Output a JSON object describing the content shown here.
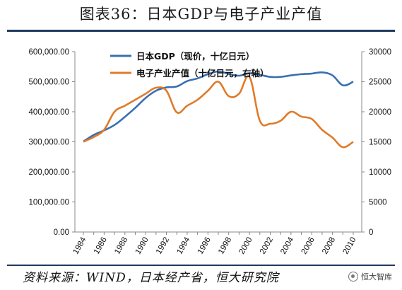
{
  "title": "图表36：日本GDP与电子产业产值",
  "source": "资料来源：WIND，日本经产省，恒大研究院",
  "watermark": "恒大智库",
  "chart_data": {
    "type": "line",
    "x": [
      1984,
      1985,
      1986,
      1987,
      1988,
      1989,
      1990,
      1991,
      1992,
      1993,
      1994,
      1995,
      1996,
      1997,
      1998,
      1999,
      2000,
      2001,
      2002,
      2003,
      2004,
      2005,
      2006,
      2007,
      2008,
      2009,
      2010
    ],
    "x_tick_labels": [
      "1984",
      "1986",
      "1988",
      "1990",
      "1992",
      "1994",
      "1996",
      "1998",
      "2000",
      "2002",
      "2004",
      "2006",
      "2008",
      "2010"
    ],
    "y_left": {
      "ylim": [
        0,
        600000
      ],
      "ticks": [
        "0.00",
        "100,000.00",
        "200,000.00",
        "300,000.00",
        "400,000.00",
        "500,000.00",
        "600,000.00"
      ]
    },
    "y_right": {
      "ylim": [
        0,
        30000
      ],
      "ticks": [
        "0",
        "5000",
        "10000",
        "15000",
        "20000",
        "25000",
        "30000"
      ]
    },
    "grid": false,
    "legend_position": "top-left",
    "series": [
      {
        "name": "日本GDP（现价，十亿日元）",
        "axis": "left",
        "color": "#3a6fb0",
        "values": [
          301000,
          323000,
          338000,
          356000,
          383000,
          413000,
          446000,
          470000,
          481000,
          484000,
          502000,
          511000,
          525000,
          534000,
          526000,
          520000,
          528000,
          523000,
          516000,
          516000,
          521000,
          525000,
          527000,
          531000,
          521000,
          488000,
          500000
        ]
      },
      {
        "name": "电子产业产值（十亿日元，右轴）",
        "axis": "right",
        "color": "#e07b2a",
        "values": [
          15000,
          15800,
          17000,
          20000,
          21000,
          22000,
          23000,
          24000,
          23500,
          19900,
          21000,
          22000,
          23500,
          25000,
          22600,
          23000,
          25800,
          18500,
          18000,
          18500,
          20000,
          19200,
          18800,
          17000,
          15700,
          14100,
          15000
        ]
      }
    ]
  }
}
